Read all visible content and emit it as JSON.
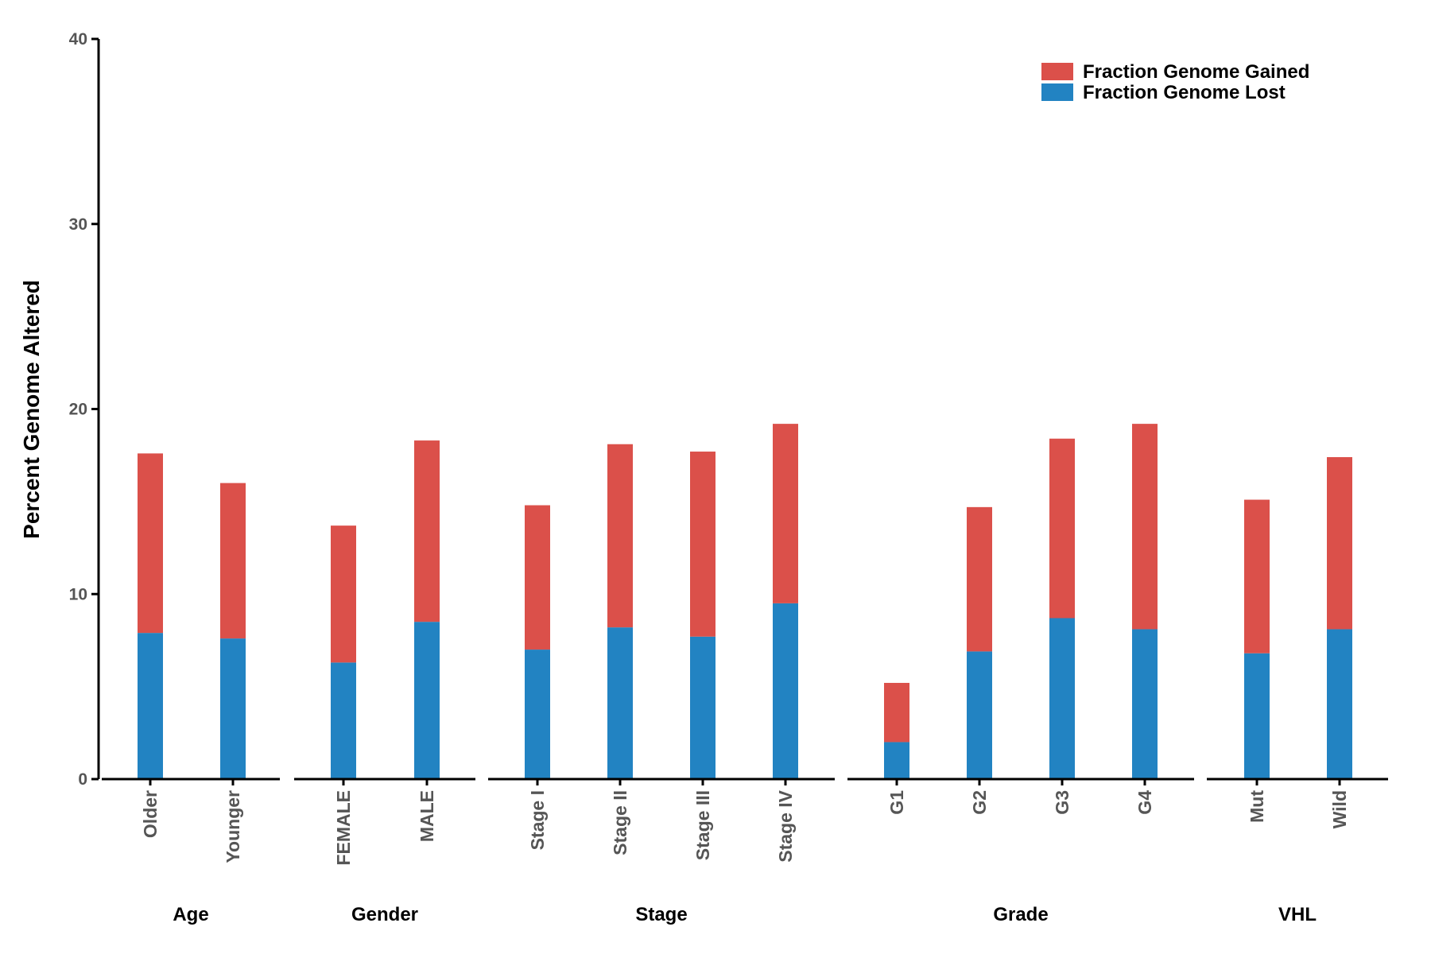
{
  "chart_data": {
    "type": "bar",
    "stacked": true,
    "ylabel": "Percent Genome Altered",
    "ylim": [
      0,
      40
    ],
    "yticks": [
      0,
      10,
      20,
      30,
      40
    ],
    "grid": false,
    "legend_position": "top-right",
    "colors": {
      "gained": "#db504a",
      "lost": "#2283c2"
    },
    "groups": [
      {
        "label": "Age",
        "categories": [
          "Older",
          "Younger"
        ],
        "lost": [
          7.9,
          7.6
        ],
        "gained": [
          9.7,
          8.4
        ]
      },
      {
        "label": "Gender",
        "categories": [
          "FEMALE",
          "MALE"
        ],
        "lost": [
          6.3,
          8.5
        ],
        "gained": [
          7.4,
          9.8
        ]
      },
      {
        "label": "Stage",
        "categories": [
          "Stage I",
          "Stage II",
          "Stage III",
          "Stage IV"
        ],
        "lost": [
          7.0,
          8.2,
          7.7,
          9.5
        ],
        "gained": [
          7.8,
          9.9,
          10.0,
          9.7
        ]
      },
      {
        "label": "Grade",
        "categories": [
          "G1",
          "G2",
          "G3",
          "G4"
        ],
        "lost": [
          2.0,
          6.9,
          8.7,
          8.1
        ],
        "gained": [
          3.2,
          7.8,
          9.7,
          11.1
        ]
      },
      {
        "label": "VHL",
        "categories": [
          "Mut",
          "Wild"
        ],
        "lost": [
          6.8,
          8.1
        ],
        "gained": [
          8.3,
          9.3
        ]
      }
    ],
    "legend": {
      "gained_label": "Fraction Genome Gained",
      "lost_label": "Fraction Genome Lost"
    }
  }
}
